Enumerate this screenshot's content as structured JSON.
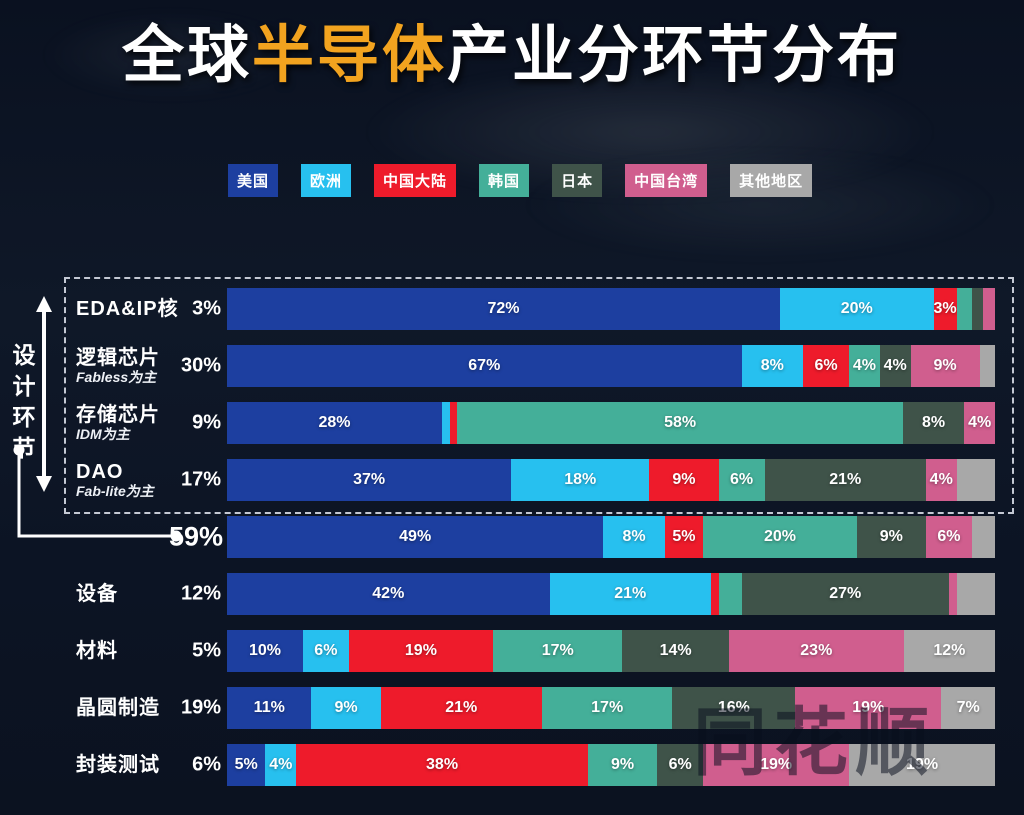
{
  "title": {
    "prefix": "全球",
    "highlight": "半导体",
    "suffix": "产业分环节分布",
    "highlight_color": "#f2a31f"
  },
  "colors": {
    "us": "#1d3fa0",
    "eu": "#27c0ef",
    "cn": "#ee1b2b",
    "kr": "#44af99",
    "jp": "#3f5349",
    "tw": "#d05e8e",
    "other": "#a8a8a8"
  },
  "legend": [
    {
      "key": "us",
      "label": "美国"
    },
    {
      "key": "eu",
      "label": "欧洲"
    },
    {
      "key": "cn",
      "label": "中国大陆"
    },
    {
      "key": "kr",
      "label": "韩国"
    },
    {
      "key": "jp",
      "label": "日本"
    },
    {
      "key": "tw",
      "label": "中国台湾"
    },
    {
      "key": "other",
      "label": "其他地区"
    }
  ],
  "design_group": {
    "vertical_label": "设计环节",
    "total_share_label": "59%"
  },
  "watermark": "同花顺",
  "chart_data": {
    "type": "bar",
    "orientation": "horizontal",
    "stacked": true,
    "unit": "%",
    "title": "全球半导体产业分环节分布",
    "legend_entries": [
      "美国",
      "欧洲",
      "中国大陆",
      "韩国",
      "日本",
      "中国台湾",
      "其他地区"
    ],
    "note": "rows 1-4 are grouped as 设计环节 (design segment) totaling 59%",
    "rows": [
      {
        "name": "EDA&IP核",
        "sub": "",
        "share": "3%",
        "emphasis": false,
        "segments": [
          {
            "region": "美国",
            "key": "us",
            "value": 72,
            "label": "72%"
          },
          {
            "region": "欧洲",
            "key": "eu",
            "value": 20,
            "label": "20%"
          },
          {
            "region": "中国大陆",
            "key": "cn",
            "value": 3,
            "label": "3%"
          },
          {
            "region": "韩国",
            "key": "kr",
            "value": 2,
            "label": ""
          },
          {
            "region": "日本",
            "key": "jp",
            "value": 1.5,
            "label": ""
          },
          {
            "region": "中国台湾",
            "key": "tw",
            "value": 1.5,
            "label": ""
          }
        ]
      },
      {
        "name": "逻辑芯片",
        "sub": "Fabless为主",
        "share": "30%",
        "emphasis": false,
        "segments": [
          {
            "region": "美国",
            "key": "us",
            "value": 67,
            "label": "67%"
          },
          {
            "region": "欧洲",
            "key": "eu",
            "value": 8,
            "label": "8%"
          },
          {
            "region": "中国大陆",
            "key": "cn",
            "value": 6,
            "label": "6%"
          },
          {
            "region": "韩国",
            "key": "kr",
            "value": 4,
            "label": "4%"
          },
          {
            "region": "日本",
            "key": "jp",
            "value": 4,
            "label": "4%"
          },
          {
            "region": "中国台湾",
            "key": "tw",
            "value": 9,
            "label": "9%"
          },
          {
            "region": "其他地区",
            "key": "other",
            "value": 2,
            "label": ""
          }
        ]
      },
      {
        "name": "存储芯片",
        "sub": "IDM为主",
        "share": "9%",
        "emphasis": false,
        "segments": [
          {
            "region": "美国",
            "key": "us",
            "value": 28,
            "label": "28%"
          },
          {
            "region": "欧洲",
            "key": "eu",
            "value": 1,
            "label": ""
          },
          {
            "region": "中国大陆",
            "key": "cn",
            "value": 1,
            "label": ""
          },
          {
            "region": "韩国",
            "key": "kr",
            "value": 58,
            "label": "58%"
          },
          {
            "region": "日本",
            "key": "jp",
            "value": 8,
            "label": "8%"
          },
          {
            "region": "中国台湾",
            "key": "tw",
            "value": 4,
            "label": "4%"
          }
        ]
      },
      {
        "name": "DAO",
        "sub": "Fab-lite为主",
        "share": "17%",
        "emphasis": false,
        "segments": [
          {
            "region": "美国",
            "key": "us",
            "value": 37,
            "label": "37%"
          },
          {
            "region": "欧洲",
            "key": "eu",
            "value": 18,
            "label": "18%"
          },
          {
            "region": "中国大陆",
            "key": "cn",
            "value": 9,
            "label": "9%"
          },
          {
            "region": "韩国",
            "key": "kr",
            "value": 6,
            "label": "6%"
          },
          {
            "region": "日本",
            "key": "jp",
            "value": 21,
            "label": "21%"
          },
          {
            "region": "中国台湾",
            "key": "tw",
            "value": 4,
            "label": "4%"
          },
          {
            "region": "其他地区",
            "key": "other",
            "value": 5,
            "label": ""
          }
        ]
      },
      {
        "name": "",
        "sub": "",
        "share": "59%",
        "emphasis": true,
        "segments": [
          {
            "region": "美国",
            "key": "us",
            "value": 49,
            "label": "49%"
          },
          {
            "region": "欧洲",
            "key": "eu",
            "value": 8,
            "label": "8%"
          },
          {
            "region": "中国大陆",
            "key": "cn",
            "value": 5,
            "label": "5%"
          },
          {
            "region": "韩国",
            "key": "kr",
            "value": 20,
            "label": "20%"
          },
          {
            "region": "日本",
            "key": "jp",
            "value": 9,
            "label": "9%"
          },
          {
            "region": "中国台湾",
            "key": "tw",
            "value": 6,
            "label": "6%"
          },
          {
            "region": "其他地区",
            "key": "other",
            "value": 3,
            "label": ""
          }
        ]
      },
      {
        "name": "设备",
        "sub": "",
        "share": "12%",
        "emphasis": false,
        "segments": [
          {
            "region": "美国",
            "key": "us",
            "value": 42,
            "label": "42%"
          },
          {
            "region": "欧洲",
            "key": "eu",
            "value": 21,
            "label": "21%"
          },
          {
            "region": "中国大陆",
            "key": "cn",
            "value": 1,
            "label": ""
          },
          {
            "region": "韩国",
            "key": "kr",
            "value": 3,
            "label": ""
          },
          {
            "region": "日本",
            "key": "jp",
            "value": 27,
            "label": "27%"
          },
          {
            "region": "中国台湾",
            "key": "tw",
            "value": 1,
            "label": ""
          },
          {
            "region": "其他地区",
            "key": "other",
            "value": 5,
            "label": ""
          }
        ]
      },
      {
        "name": "材料",
        "sub": "",
        "share": "5%",
        "emphasis": false,
        "segments": [
          {
            "region": "美国",
            "key": "us",
            "value": 10,
            "label": "10%"
          },
          {
            "region": "欧洲",
            "key": "eu",
            "value": 6,
            "label": "6%"
          },
          {
            "region": "中国大陆",
            "key": "cn",
            "value": 19,
            "label": "19%"
          },
          {
            "region": "韩国",
            "key": "kr",
            "value": 17,
            "label": "17%"
          },
          {
            "region": "日本",
            "key": "jp",
            "value": 14,
            "label": "14%"
          },
          {
            "region": "中国台湾",
            "key": "tw",
            "value": 23,
            "label": "23%"
          },
          {
            "region": "其他地区",
            "key": "other",
            "value": 12,
            "label": "12%"
          }
        ]
      },
      {
        "name": "晶圆制造",
        "sub": "",
        "share": "19%",
        "emphasis": false,
        "segments": [
          {
            "region": "美国",
            "key": "us",
            "value": 11,
            "label": "11%"
          },
          {
            "region": "欧洲",
            "key": "eu",
            "value": 9,
            "label": "9%"
          },
          {
            "region": "中国大陆",
            "key": "cn",
            "value": 21,
            "label": "21%"
          },
          {
            "region": "韩国",
            "key": "kr",
            "value": 17,
            "label": "17%"
          },
          {
            "region": "日本",
            "key": "jp",
            "value": 16,
            "label": "16%"
          },
          {
            "region": "中国台湾",
            "key": "tw",
            "value": 19,
            "label": "19%"
          },
          {
            "region": "其他地区",
            "key": "other",
            "value": 7,
            "label": "7%"
          }
        ]
      },
      {
        "name": "封装测试",
        "sub": "",
        "share": "6%",
        "emphasis": false,
        "segments": [
          {
            "region": "美国",
            "key": "us",
            "value": 5,
            "label": "5%"
          },
          {
            "region": "欧洲",
            "key": "eu",
            "value": 4,
            "label": "4%"
          },
          {
            "region": "中国大陆",
            "key": "cn",
            "value": 38,
            "label": "38%"
          },
          {
            "region": "韩国",
            "key": "kr",
            "value": 9,
            "label": "9%"
          },
          {
            "region": "日本",
            "key": "jp",
            "value": 6,
            "label": "6%"
          },
          {
            "region": "中国台湾",
            "key": "tw",
            "value": 19,
            "label": "19%"
          },
          {
            "region": "其他地区",
            "key": "other",
            "value": 19,
            "label": "19%"
          }
        ]
      }
    ]
  }
}
